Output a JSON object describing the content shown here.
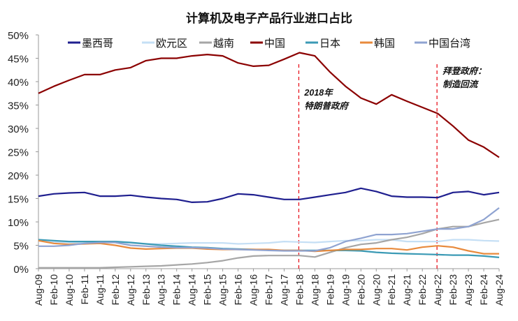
{
  "chart_data": {
    "type": "line",
    "title": "计算机及电子产品行业进口占比",
    "xlabel": "",
    "ylabel": "",
    "ylim": [
      0,
      50
    ],
    "yticks": [
      "0%",
      "5%",
      "10%",
      "15%",
      "20%",
      "25%",
      "30%",
      "35%",
      "40%",
      "45%",
      "50%"
    ],
    "grid": false,
    "legend_position": "top",
    "categories": [
      "Aug-09",
      "Feb-10",
      "Aug-10",
      "Feb-11",
      "Aug-11",
      "Feb-12",
      "Aug-12",
      "Feb-13",
      "Aug-13",
      "Feb-14",
      "Aug-14",
      "Feb-15",
      "Aug-15",
      "Feb-16",
      "Aug-16",
      "Feb-17",
      "Aug-17",
      "Feb-18",
      "Aug-18",
      "Feb-19",
      "Aug-19",
      "Feb-20",
      "Aug-20",
      "Feb-21",
      "Aug-21",
      "Feb-22",
      "Aug-22",
      "Feb-23",
      "Aug-23",
      "Feb-24",
      "Aug-24"
    ],
    "series": [
      {
        "name": "墨西哥",
        "color": "#1f1f8f",
        "values": [
          15.5,
          16,
          16.2,
          16.3,
          15.5,
          15.5,
          15.7,
          15.3,
          15,
          14.8,
          14.2,
          14.3,
          15,
          16,
          15.8,
          15.3,
          14.8,
          14.8,
          15.3,
          15.8,
          16.3,
          17.2,
          16.5,
          15.5,
          15.3,
          15.3,
          15.2,
          16.3,
          16.5,
          15.8,
          16.3
        ]
      },
      {
        "name": "欧元区",
        "color": "#c5dff5",
        "values": [
          6,
          5.7,
          5.6,
          5.5,
          5.6,
          5.7,
          5.5,
          5.3,
          5.3,
          5.4,
          5.5,
          5.5,
          5.5,
          5.3,
          5.4,
          5.5,
          5.8,
          5.7,
          5.6,
          5.8,
          6,
          6,
          6.2,
          6.2,
          5.8,
          5.8,
          5.8,
          6.2,
          6.2,
          6,
          5.9
        ]
      },
      {
        "name": "越南",
        "color": "#a6a6a6",
        "values": [
          0.2,
          0.2,
          0.2,
          0.2,
          0.2,
          0.3,
          0.4,
          0.5,
          0.6,
          0.8,
          1,
          1.3,
          1.7,
          2.3,
          2.7,
          2.8,
          2.8,
          2.8,
          2.5,
          3.5,
          4.5,
          5.2,
          5.5,
          6.2,
          6.7,
          7.5,
          8.5,
          9,
          9,
          9.8,
          10.5
        ]
      },
      {
        "name": "中国",
        "color": "#8b0000",
        "values": [
          37.5,
          39,
          40.3,
          41.5,
          41.5,
          42.5,
          43,
          44.5,
          45,
          45,
          45.5,
          45.8,
          45.5,
          44,
          43.3,
          43.5,
          44.8,
          46.2,
          45.5,
          42,
          39,
          36.5,
          35.2,
          37.2,
          35.8,
          34.5,
          33.2,
          30.5,
          27.5,
          26,
          23.8
        ]
      },
      {
        "name": "日本",
        "color": "#3b9ab5",
        "values": [
          6.2,
          6,
          5.8,
          5.8,
          5.8,
          5.8,
          5.6,
          5.3,
          5,
          4.8,
          4.6,
          4.5,
          4.3,
          4.2,
          4.1,
          4,
          3.9,
          3.9,
          3.9,
          3.9,
          3.9,
          3.8,
          3.5,
          3.3,
          3.2,
          3.1,
          3,
          2.9,
          2.9,
          2.7,
          2.4
        ]
      },
      {
        "name": "韩国",
        "color": "#e88a3c",
        "values": [
          6,
          5.4,
          5.2,
          5.3,
          5.4,
          5,
          4.4,
          4.2,
          4.3,
          4.4,
          4.4,
          4.2,
          4.1,
          4.1,
          4.1,
          4.1,
          3.9,
          3.9,
          3.7,
          3.9,
          4.1,
          4.1,
          4.3,
          4.3,
          4,
          4.6,
          4.9,
          4.6,
          3.8,
          3.2,
          3.2
        ]
      },
      {
        "name": "中国台湾",
        "color": "#8fa3d1",
        "values": [
          4.8,
          4.8,
          5,
          5.4,
          5.6,
          5.6,
          5,
          4.8,
          4.6,
          4.5,
          4.5,
          4.4,
          4.2,
          4.1,
          4,
          3.9,
          3.8,
          3.8,
          3.8,
          4.5,
          5.8,
          6.5,
          7.3,
          7.3,
          7.5,
          8,
          8.5,
          8.5,
          9,
          10.5,
          13
        ]
      }
    ],
    "annotations": [
      {
        "at": "Feb-18",
        "lines": [
          "2018年",
          "特朗普政府"
        ],
        "color": "#e8141e"
      },
      {
        "at": "Aug-22",
        "lines": [
          "拜登政府：",
          "制造回流"
        ],
        "color": "#e8141e"
      }
    ]
  }
}
